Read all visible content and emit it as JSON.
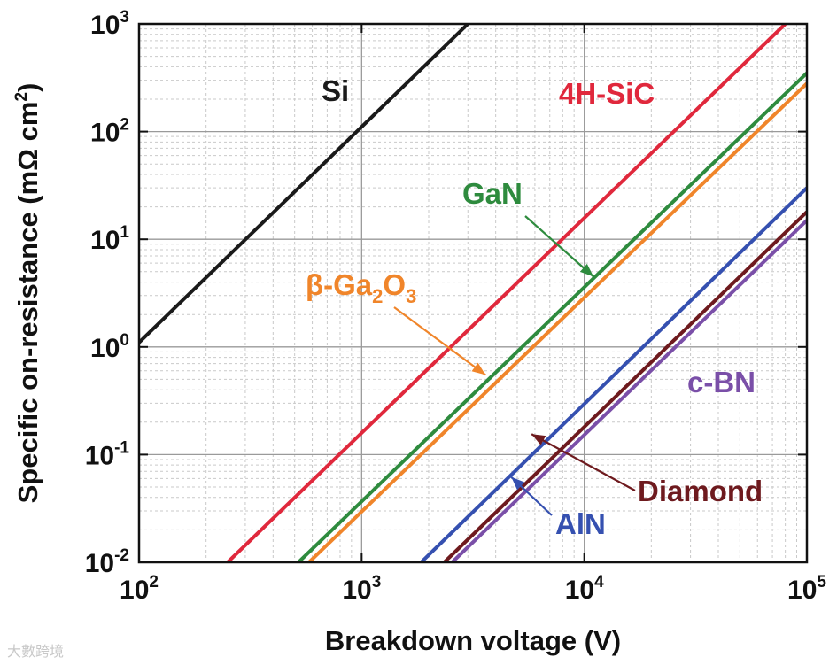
{
  "watermark": "大數跨境",
  "chart_data": {
    "type": "line",
    "title": "",
    "xlabel": "Breakdown voltage (V)",
    "ylabel": "Specific on-resistance (mΩ cm",
    "ylabel_sup": "2",
    "ylabel_close": ")",
    "x_scale": "log",
    "y_scale": "log",
    "xlim": [
      100,
      100000
    ],
    "ylim": [
      0.01,
      1000
    ],
    "grid": true,
    "x_ticks": [
      {
        "value": 100,
        "base": "10",
        "exp": "2"
      },
      {
        "value": 1000,
        "base": "10",
        "exp": "3"
      },
      {
        "value": 10000,
        "base": "10",
        "exp": "4"
      },
      {
        "value": 100000,
        "base": "10",
        "exp": "5"
      }
    ],
    "y_ticks": [
      {
        "value": 0.01,
        "base": "10",
        "exp": "-2"
      },
      {
        "value": 0.1,
        "base": "10",
        "exp": "-1"
      },
      {
        "value": 1,
        "base": "10",
        "exp": "0"
      },
      {
        "value": 10,
        "base": "10",
        "exp": "1"
      },
      {
        "value": 100,
        "base": "10",
        "exp": "2"
      },
      {
        "value": 1000,
        "base": "10",
        "exp": "3"
      }
    ],
    "series": [
      {
        "name": "Si",
        "color": "#1a1a1a",
        "x": [
          100,
          3000
        ],
        "y": [
          1.1,
          1000
        ]
      },
      {
        "name": "4H-SiC",
        "color": "#e0283c",
        "x": [
          250,
          80000
        ],
        "y": [
          0.01,
          1000
        ]
      },
      {
        "name": "GaN",
        "color": "#2e8b3e",
        "x": [
          520,
          100000
        ],
        "y": [
          0.01,
          350
        ]
      },
      {
        "name": "β-Ga2O3",
        "color": "#f0852a",
        "x": [
          580,
          100000
        ],
        "y": [
          0.01,
          280
        ]
      },
      {
        "name": "AlN",
        "color": "#3550b0",
        "x": [
          1850,
          100000
        ],
        "y": [
          0.01,
          30
        ]
      },
      {
        "name": "Diamond",
        "color": "#6e1a1e",
        "x": [
          2350,
          100000
        ],
        "y": [
          0.01,
          18
        ]
      },
      {
        "name": "c-BN",
        "color": "#7a4fa8",
        "x": [
          2550,
          100000
        ],
        "y": [
          0.01,
          15
        ]
      }
    ],
    "annotations": [
      {
        "text": "Si",
        "series": "Si",
        "color": "#1a1a1a"
      },
      {
        "text": "4H-SiC",
        "series": "4H-SiC",
        "color": "#e0283c"
      },
      {
        "text": "GaN",
        "series": "GaN",
        "color": "#2e8b3e",
        "arrow_to": {
          "x": 11000,
          "y": 4.5
        }
      },
      {
        "text": "β-Ga",
        "sub1": "2",
        "mid": "O",
        "sub2": "3",
        "series": "β-Ga2O3",
        "color": "#f0852a",
        "arrow_to": {
          "x": 3600,
          "y": 0.55
        }
      },
      {
        "text": "c-BN",
        "series": "c-BN",
        "color": "#7a4fa8"
      },
      {
        "text": "Diamond",
        "series": "Diamond",
        "color": "#6e1a1e",
        "arrow_to": {
          "x": 5800,
          "y": 0.155
        }
      },
      {
        "text": "AlN",
        "series": "AlN",
        "color": "#3550b0",
        "arrow_to": {
          "x": 4700,
          "y": 0.062
        }
      }
    ]
  }
}
